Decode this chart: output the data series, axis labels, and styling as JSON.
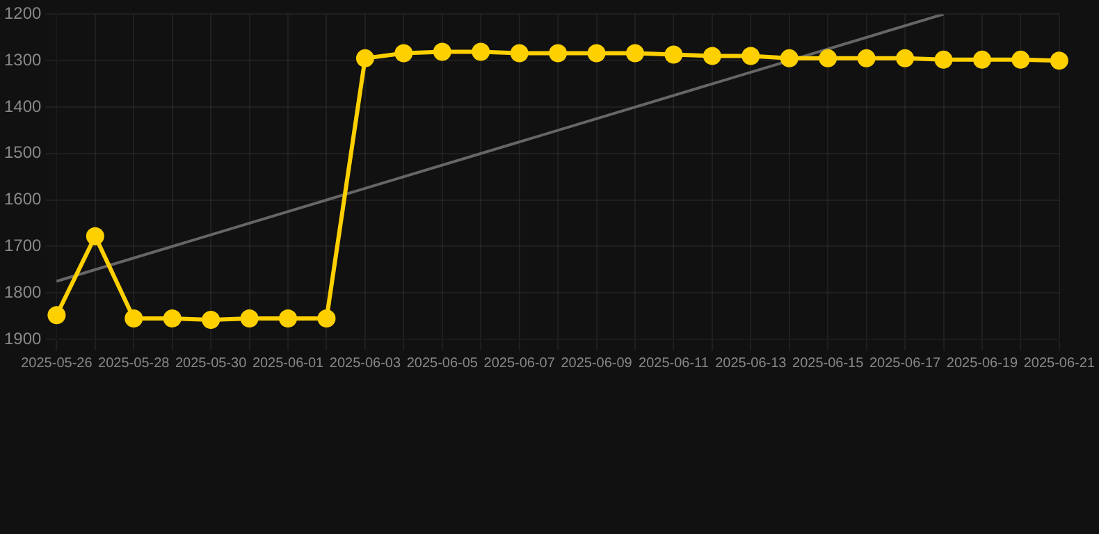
{
  "chart_data": {
    "type": "line",
    "categories": [
      "2025-05-26",
      null,
      "2025-05-28",
      null,
      "2025-05-30",
      null,
      "2025-06-01",
      null,
      "2025-06-03",
      null,
      "2025-06-05",
      null,
      "2025-06-07",
      null,
      "2025-06-09",
      null,
      "2025-06-11",
      null,
      "2025-06-13",
      null,
      "2025-06-15",
      null,
      "2025-06-17",
      null,
      "2025-06-19",
      null,
      "2025-06-21"
    ],
    "series": [
      {
        "color": "#ffd000",
        "values": [
          1848,
          1678,
          1855,
          1855,
          1858,
          1855,
          1855,
          1855,
          1295,
          1284,
          1281,
          1281,
          1284,
          1284,
          1284,
          1284,
          1287,
          1290,
          1290,
          1295,
          1295,
          1295,
          1295,
          1298,
          1298,
          1298,
          1300
        ]
      },
      {
        "type": "line",
        "color": "#666666",
        "marker": "none",
        "values": [
          1775,
          null,
          null,
          null,
          null,
          null,
          null,
          null,
          null,
          null,
          null,
          null,
          null,
          null,
          null,
          null,
          null,
          null,
          null,
          null,
          null,
          null,
          null,
          1200,
          null,
          null,
          null
        ]
      }
    ],
    "ylim": [
      1900,
      1200
    ],
    "yticks": [
      1200,
      1300,
      1400,
      1500,
      1600,
      1700,
      1800,
      1900
    ],
    "grid": true,
    "marker": "circle",
    "legend": false
  }
}
